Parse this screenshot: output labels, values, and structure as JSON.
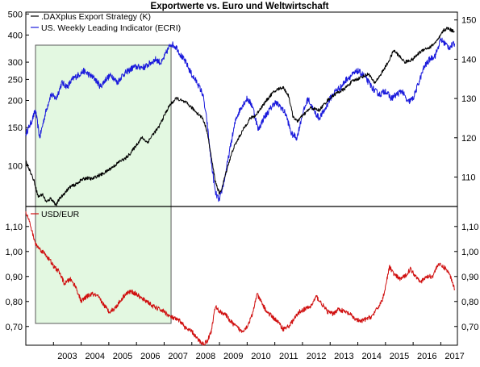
{
  "title": "Exportwerte vs. Euro und Weltwirtschaft",
  "colors": {
    "dax": "#000000",
    "ecri": "#1a1adc",
    "usd": "#d01010",
    "highlight_fill": "#e3f8e1",
    "highlight_stroke": "#5a5a5a"
  },
  "x_ticks": [
    "2003",
    "2004",
    "2005",
    "2006",
    "2007",
    "2008",
    "2009",
    "2010",
    "2011",
    "2012",
    "2013",
    "2014",
    "2015",
    "2016",
    "2017"
  ],
  "chart_data": [
    {
      "type": "line",
      "panel": "top",
      "title": "Exportwerte vs. Euro und Weltwirtschaft",
      "x_range": [
        2002.0,
        2017.6
      ],
      "left_axis": {
        "scale": "log",
        "range": [
          65,
          510
        ],
        "ticks": [
          "100",
          "150",
          "200",
          "250",
          "300",
          "400",
          "500"
        ]
      },
      "right_axis": {
        "range": [
          102.5,
          152
        ],
        "ticks": [
          "110",
          "120",
          "130",
          "140",
          "150"
        ]
      },
      "legend_position": "top-left",
      "highlight_range": [
        2002.35,
        2007.25
      ],
      "series": [
        {
          "name": ".DAXplus Export Strategy (K)",
          "axis": "left",
          "points": [
            [
              2002.0,
              105
            ],
            [
              2002.15,
              95
            ],
            [
              2002.3,
              85
            ],
            [
              2002.45,
              72
            ],
            [
              2002.6,
              74
            ],
            [
              2002.75,
              68
            ],
            [
              2002.9,
              71
            ],
            [
              2003.1,
              66
            ],
            [
              2003.2,
              70
            ],
            [
              2003.4,
              75
            ],
            [
              2003.6,
              80
            ],
            [
              2003.8,
              82
            ],
            [
              2004.0,
              86
            ],
            [
              2004.2,
              88
            ],
            [
              2004.4,
              87
            ],
            [
              2004.6,
              90
            ],
            [
              2004.8,
              92
            ],
            [
              2005.0,
              96
            ],
            [
              2005.2,
              100
            ],
            [
              2005.4,
              105
            ],
            [
              2005.6,
              108
            ],
            [
              2005.8,
              115
            ],
            [
              2006.0,
              125
            ],
            [
              2006.2,
              135
            ],
            [
              2006.4,
              128
            ],
            [
              2006.6,
              140
            ],
            [
              2006.8,
              150
            ],
            [
              2007.0,
              170
            ],
            [
              2007.2,
              190
            ],
            [
              2007.45,
              205
            ],
            [
              2007.6,
              200
            ],
            [
              2007.8,
              195
            ],
            [
              2008.0,
              185
            ],
            [
              2008.2,
              175
            ],
            [
              2008.4,
              165
            ],
            [
              2008.55,
              145
            ],
            [
              2008.7,
              110
            ],
            [
              2008.85,
              85
            ],
            [
              2009.0,
              74
            ],
            [
              2009.1,
              80
            ],
            [
              2009.3,
              100
            ],
            [
              2009.5,
              120
            ],
            [
              2009.7,
              135
            ],
            [
              2009.9,
              150
            ],
            [
              2010.1,
              165
            ],
            [
              2010.3,
              170
            ],
            [
              2010.5,
              185
            ],
            [
              2010.7,
              200
            ],
            [
              2010.9,
              215
            ],
            [
              2011.1,
              225
            ],
            [
              2011.3,
              230
            ],
            [
              2011.5,
              210
            ],
            [
              2011.65,
              170
            ],
            [
              2011.8,
              160
            ],
            [
              2012.0,
              170
            ],
            [
              2012.3,
              185
            ],
            [
              2012.6,
              180
            ],
            [
              2012.9,
              200
            ],
            [
              2013.2,
              215
            ],
            [
              2013.5,
              225
            ],
            [
              2013.8,
              245
            ],
            [
              2014.1,
              255
            ],
            [
              2014.4,
              265
            ],
            [
              2014.6,
              240
            ],
            [
              2014.8,
              260
            ],
            [
              2015.1,
              300
            ],
            [
              2015.3,
              340
            ],
            [
              2015.5,
              320
            ],
            [
              2015.7,
              300
            ],
            [
              2016.0,
              310
            ],
            [
              2016.2,
              330
            ],
            [
              2016.4,
              345
            ],
            [
              2016.6,
              350
            ],
            [
              2016.9,
              380
            ],
            [
              2017.1,
              420
            ],
            [
              2017.25,
              430
            ],
            [
              2017.4,
              420
            ],
            [
              2017.5,
              415
            ]
          ]
        },
        {
          "name": "US. Weekly Leading Indicator (ECRI)",
          "axis": "right",
          "points": [
            [
              2002.0,
              121
            ],
            [
              2002.2,
              124
            ],
            [
              2002.35,
              127
            ],
            [
              2002.5,
              120
            ],
            [
              2002.7,
              126
            ],
            [
              2002.9,
              131
            ],
            [
              2003.1,
              130
            ],
            [
              2003.3,
              134
            ],
            [
              2003.5,
              133
            ],
            [
              2003.7,
              135
            ],
            [
              2003.9,
              136
            ],
            [
              2004.1,
              137
            ],
            [
              2004.3,
              136
            ],
            [
              2004.5,
              135
            ],
            [
              2004.7,
              133
            ],
            [
              2004.9,
              135
            ],
            [
              2005.1,
              136
            ],
            [
              2005.3,
              134
            ],
            [
              2005.5,
              136
            ],
            [
              2005.7,
              137
            ],
            [
              2005.9,
              138
            ],
            [
              2006.1,
              138
            ],
            [
              2006.3,
              138
            ],
            [
              2006.5,
              139
            ],
            [
              2006.7,
              140
            ],
            [
              2006.9,
              139
            ],
            [
              2007.1,
              142
            ],
            [
              2007.25,
              144
            ],
            [
              2007.45,
              143
            ],
            [
              2007.6,
              141
            ],
            [
              2007.8,
              139
            ],
            [
              2008.0,
              136
            ],
            [
              2008.2,
              134
            ],
            [
              2008.4,
              131
            ],
            [
              2008.55,
              124
            ],
            [
              2008.7,
              114
            ],
            [
              2008.85,
              106
            ],
            [
              2009.0,
              104
            ],
            [
              2009.2,
              110
            ],
            [
              2009.4,
              118
            ],
            [
              2009.6,
              125
            ],
            [
              2009.8,
              128
            ],
            [
              2010.0,
              130
            ],
            [
              2010.2,
              128
            ],
            [
              2010.4,
              122
            ],
            [
              2010.6,
              125
            ],
            [
              2010.8,
              127
            ],
            [
              2011.0,
              129
            ],
            [
              2011.2,
              128
            ],
            [
              2011.4,
              126
            ],
            [
              2011.6,
              121
            ],
            [
              2011.8,
              120
            ],
            [
              2012.0,
              126
            ],
            [
              2012.2,
              130
            ],
            [
              2012.4,
              127
            ],
            [
              2012.6,
              125
            ],
            [
              2012.8,
              127
            ],
            [
              2013.0,
              130
            ],
            [
              2013.2,
              132
            ],
            [
              2013.4,
              133
            ],
            [
              2013.6,
              135
            ],
            [
              2013.8,
              136
            ],
            [
              2014.0,
              137
            ],
            [
              2014.2,
              136
            ],
            [
              2014.4,
              134
            ],
            [
              2014.6,
              132
            ],
            [
              2014.8,
              131
            ],
            [
              2015.0,
              132
            ],
            [
              2015.2,
              130
            ],
            [
              2015.4,
              131
            ],
            [
              2015.6,
              132
            ],
            [
              2015.8,
              129
            ],
            [
              2016.0,
              130
            ],
            [
              2016.2,
              134
            ],
            [
              2016.4,
              138
            ],
            [
              2016.6,
              140
            ],
            [
              2016.8,
              141
            ],
            [
              2017.0,
              145
            ],
            [
              2017.15,
              144
            ],
            [
              2017.3,
              143
            ],
            [
              2017.5,
              144
            ]
          ]
        }
      ]
    },
    {
      "type": "line",
      "panel": "bottom",
      "x_range": [
        2002.0,
        2017.6
      ],
      "left_axis": {
        "range": [
          0.625,
          1.18
        ],
        "ticks": [
          "0,70",
          "0,80",
          "0,90",
          "1,00",
          "1,10"
        ]
      },
      "right_axis": {
        "range": [
          0.625,
          1.18
        ],
        "ticks": [
          "0,70",
          "0,80",
          "0,90",
          "1,00",
          "1,10"
        ]
      },
      "legend_position": "top-left",
      "highlight_range": [
        2002.35,
        2007.25
      ],
      "series": [
        {
          "name": "USD/EUR",
          "axis": "left",
          "points": [
            [
              2002.0,
              1.16
            ],
            [
              2002.1,
              1.13
            ],
            [
              2002.2,
              1.09
            ],
            [
              2002.35,
              1.03
            ],
            [
              2002.5,
              1.01
            ],
            [
              2002.7,
              0.99
            ],
            [
              2002.9,
              0.96
            ],
            [
              2003.0,
              0.94
            ],
            [
              2003.2,
              0.92
            ],
            [
              2003.4,
              0.87
            ],
            [
              2003.6,
              0.89
            ],
            [
              2003.8,
              0.86
            ],
            [
              2004.0,
              0.8
            ],
            [
              2004.2,
              0.82
            ],
            [
              2004.4,
              0.83
            ],
            [
              2004.6,
              0.82
            ],
            [
              2004.8,
              0.79
            ],
            [
              2005.0,
              0.76
            ],
            [
              2005.2,
              0.77
            ],
            [
              2005.4,
              0.8
            ],
            [
              2005.6,
              0.83
            ],
            [
              2005.8,
              0.84
            ],
            [
              2006.0,
              0.83
            ],
            [
              2006.2,
              0.81
            ],
            [
              2006.4,
              0.8
            ],
            [
              2006.6,
              0.78
            ],
            [
              2006.8,
              0.77
            ],
            [
              2007.0,
              0.76
            ],
            [
              2007.2,
              0.74
            ],
            [
              2007.4,
              0.73
            ],
            [
              2007.6,
              0.72
            ],
            [
              2007.8,
              0.69
            ],
            [
              2008.0,
              0.68
            ],
            [
              2008.2,
              0.65
            ],
            [
              2008.4,
              0.63
            ],
            [
              2008.55,
              0.64
            ],
            [
              2008.7,
              0.68
            ],
            [
              2008.85,
              0.78
            ],
            [
              2009.0,
              0.76
            ],
            [
              2009.2,
              0.75
            ],
            [
              2009.4,
              0.72
            ],
            [
              2009.6,
              0.7
            ],
            [
              2009.8,
              0.68
            ],
            [
              2010.0,
              0.7
            ],
            [
              2010.2,
              0.75
            ],
            [
              2010.35,
              0.83
            ],
            [
              2010.5,
              0.8
            ],
            [
              2010.7,
              0.76
            ],
            [
              2010.9,
              0.74
            ],
            [
              2011.1,
              0.72
            ],
            [
              2011.3,
              0.69
            ],
            [
              2011.5,
              0.7
            ],
            [
              2011.7,
              0.73
            ],
            [
              2011.9,
              0.76
            ],
            [
              2012.1,
              0.77
            ],
            [
              2012.3,
              0.78
            ],
            [
              2012.5,
              0.82
            ],
            [
              2012.7,
              0.79
            ],
            [
              2012.9,
              0.76
            ],
            [
              2013.1,
              0.75
            ],
            [
              2013.3,
              0.77
            ],
            [
              2013.5,
              0.76
            ],
            [
              2013.7,
              0.75
            ],
            [
              2013.9,
              0.73
            ],
            [
              2014.1,
              0.72
            ],
            [
              2014.3,
              0.73
            ],
            [
              2014.5,
              0.74
            ],
            [
              2014.7,
              0.77
            ],
            [
              2014.9,
              0.81
            ],
            [
              2015.0,
              0.86
            ],
            [
              2015.15,
              0.94
            ],
            [
              2015.3,
              0.91
            ],
            [
              2015.5,
              0.89
            ],
            [
              2015.7,
              0.9
            ],
            [
              2015.9,
              0.93
            ],
            [
              2016.1,
              0.9
            ],
            [
              2016.3,
              0.88
            ],
            [
              2016.5,
              0.9
            ],
            [
              2016.7,
              0.9
            ],
            [
              2016.9,
              0.95
            ],
            [
              2017.05,
              0.94
            ],
            [
              2017.2,
              0.93
            ],
            [
              2017.35,
              0.9
            ],
            [
              2017.5,
              0.85
            ]
          ]
        }
      ]
    }
  ]
}
